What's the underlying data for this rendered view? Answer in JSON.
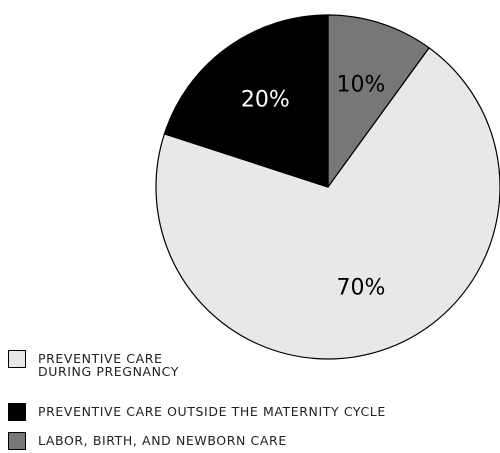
{
  "chart_data": {
    "type": "pie",
    "categories": [
      "LABOR, BIRTH, AND NEWBORN CARE",
      "PREVENTIVE CARE\nDURING PREGNANCY",
      "PREVENTIVE CARE OUTSIDE THE MATERNITY CYCLE"
    ],
    "values": [
      10,
      70,
      20
    ],
    "value_labels": [
      "10%",
      "70%",
      "20%"
    ],
    "colors": [
      "#777777",
      "#e8e8e8",
      "#000000"
    ],
    "label_colors": [
      "#000000",
      "#000000",
      "#ffffff"
    ]
  }
}
